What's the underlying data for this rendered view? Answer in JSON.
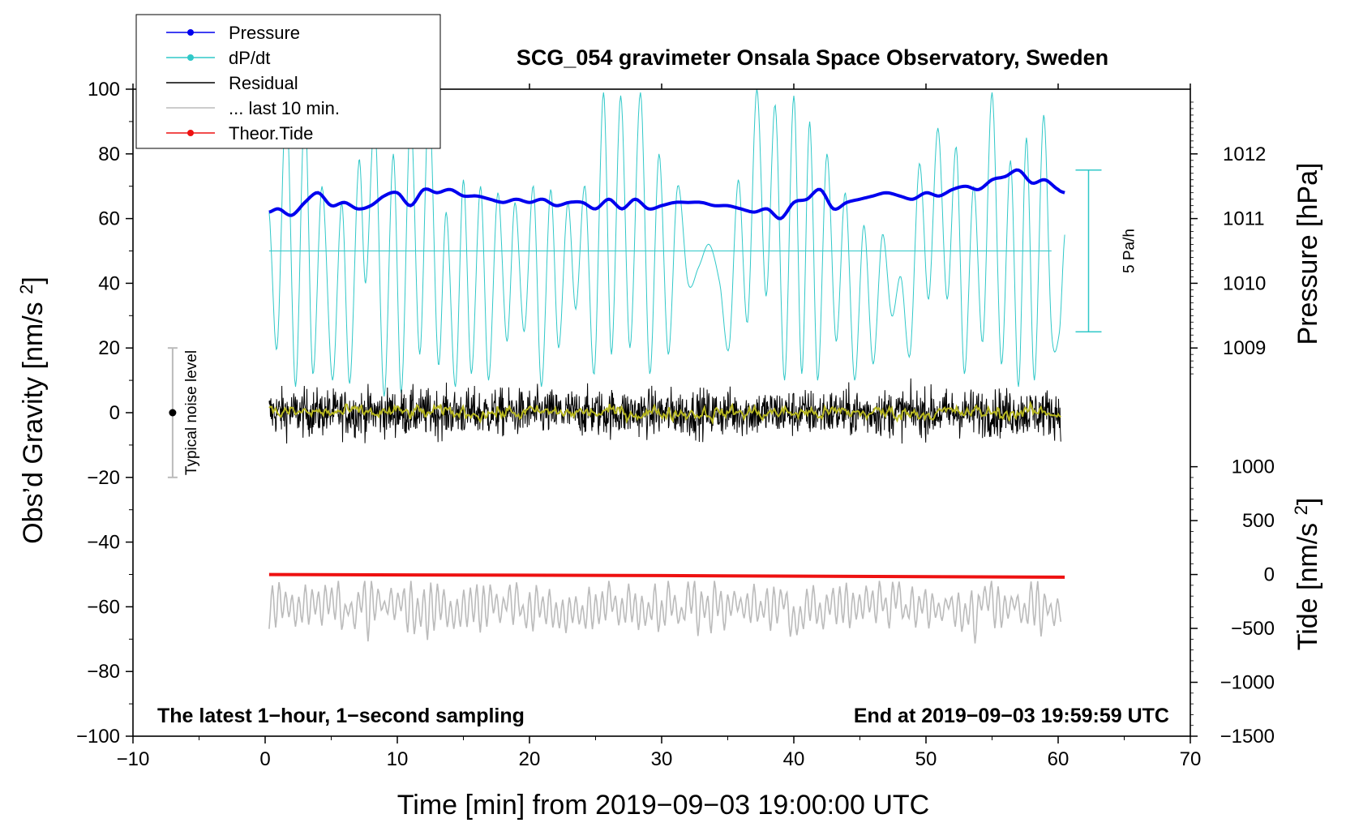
{
  "chart_data": {
    "type": "line",
    "title": "SCG_054 gravimeter Onsala Space Observatory, Sweden",
    "xlabel": "Time [min] from 2019−09−03 19:00:00 UTC",
    "ylabel_left": "Obs’d Gravity [nm/s²]",
    "ylabel_right_pressure": "Pressure [hPa]",
    "ylabel_right_tide": "Tide [nm/s²]",
    "xlim": [
      -10,
      70
    ],
    "ylim": [
      -100,
      100
    ],
    "xticks": [
      -10,
      0,
      10,
      20,
      30,
      40,
      50,
      60,
      70
    ],
    "xtick_labels": [
      "−10",
      "0",
      "10",
      "20",
      "30",
      "40",
      "50",
      "60",
      "70"
    ],
    "yticks": [
      -100,
      -80,
      -60,
      -40,
      -20,
      0,
      20,
      40,
      60,
      80,
      100
    ],
    "ytick_labels": [
      "−100",
      "−80",
      "−60",
      "−40",
      "−20",
      "0",
      "20",
      "40",
      "60",
      "80",
      "100"
    ],
    "pressure_axis": {
      "ticks": [
        1009,
        1010,
        1011,
        1012
      ],
      "tick_labels": [
        "1009",
        "1010",
        "1011",
        "1012"
      ],
      "map": {
        "value_a": 1009,
        "grav_a": 20,
        "value_b": 1012,
        "grav_b": 80
      }
    },
    "tide_axis": {
      "ticks": [
        -1500,
        -1000,
        -500,
        0,
        500,
        1000
      ],
      "tick_labels": [
        "−1500",
        "−1000",
        "−500",
        "0",
        "500",
        "1000"
      ],
      "map": {
        "value_a": -1500,
        "grav_a": -100,
        "value_b": 1000,
        "grav_b": -16.7
      }
    },
    "legend": [
      {
        "label": "Pressure",
        "color": "#0000ee",
        "marker": true
      },
      {
        "label": "dP/dt",
        "color": "#30c8c8",
        "marker": true
      },
      {
        "label": "Residual",
        "color": "#000000",
        "marker": false
      },
      {
        "label": "... last 10 min.",
        "color": "#bbbbbb",
        "marker": false
      },
      {
        "label": "Theor.Tide",
        "color": "#ee1111",
        "marker": true
      }
    ],
    "legend_position": "top-left",
    "annotations": {
      "bottom_left": "The latest 1−hour, 1−second sampling",
      "bottom_right": "End at 2019−09−03 19:59:59 UTC",
      "noise": "Typical noise level",
      "rate_scale": "5 Pa/h"
    },
    "noise_bar": {
      "x": -7,
      "center": 0,
      "low": -20,
      "high": 20
    },
    "rate_scale_bar": {
      "x": 62.3,
      "low": 25,
      "high": 75
    },
    "series": [
      {
        "name": "Pressure",
        "axis": "pressure",
        "color": "#0000ee",
        "x": [
          0.3,
          1.0,
          2.0,
          3.0,
          4.0,
          5.0,
          6.0,
          7.0,
          8.0,
          9.0,
          10.0,
          11.0,
          12.0,
          13.0,
          14.0,
          15.0,
          16.0,
          17.0,
          18.0,
          19.0,
          20.0,
          21.0,
          22.0,
          23.0,
          24.0,
          25.0,
          26.0,
          27.0,
          28.0,
          29.0,
          30.0,
          31.0,
          32.0,
          33.0,
          34.0,
          35.0,
          36.0,
          37.0,
          38.0,
          39.0,
          40.0,
          41.0,
          42.0,
          43.0,
          44.0,
          45.0,
          46.0,
          47.0,
          48.0,
          49.0,
          50.0,
          51.0,
          52.0,
          53.0,
          54.0,
          55.0,
          56.0,
          57.0,
          58.0,
          59.0,
          60.0,
          60.5
        ],
        "values": [
          1011.1,
          1011.15,
          1011.05,
          1011.25,
          1011.4,
          1011.2,
          1011.25,
          1011.15,
          1011.2,
          1011.35,
          1011.4,
          1011.2,
          1011.45,
          1011.4,
          1011.45,
          1011.35,
          1011.35,
          1011.3,
          1011.25,
          1011.3,
          1011.25,
          1011.3,
          1011.2,
          1011.25,
          1011.25,
          1011.15,
          1011.3,
          1011.15,
          1011.3,
          1011.15,
          1011.2,
          1011.25,
          1011.25,
          1011.25,
          1011.2,
          1011.2,
          1011.15,
          1011.1,
          1011.15,
          1011.0,
          1011.25,
          1011.3,
          1011.45,
          1011.15,
          1011.25,
          1011.3,
          1011.35,
          1011.4,
          1011.35,
          1011.3,
          1011.4,
          1011.35,
          1011.45,
          1011.5,
          1011.45,
          1011.6,
          1011.65,
          1011.75,
          1011.55,
          1011.6,
          1011.45,
          1011.4
        ]
      },
      {
        "name": "dP/dt",
        "axis": "gravity",
        "color": "#30c8c8",
        "baseline": 50,
        "x": [
          0.3,
          0.9,
          1.6,
          2.3,
          3.0,
          3.6,
          4.3,
          5.1,
          5.8,
          6.4,
          7.1,
          7.6,
          8.3,
          9.0,
          9.7,
          10.3,
          11.0,
          11.7,
          12.4,
          13.1,
          13.7,
          14.4,
          15.0,
          15.6,
          16.3,
          16.9,
          17.6,
          18.3,
          18.9,
          19.6,
          20.3,
          20.9,
          21.6,
          22.2,
          22.9,
          23.5,
          24.2,
          24.9,
          25.6,
          26.2,
          26.9,
          27.6,
          28.4,
          29.1,
          29.8,
          30.5,
          31.2,
          32.0,
          32.8,
          33.6,
          34.4,
          35.1,
          35.8,
          36.5,
          37.2,
          37.9,
          38.6,
          39.3,
          40.0,
          40.6,
          41.2,
          41.8,
          42.5,
          43.2,
          43.9,
          44.6,
          45.3,
          46.0,
          46.7,
          47.4,
          48.1,
          48.8,
          49.5,
          50.2,
          50.9,
          51.6,
          52.3,
          52.9,
          53.6,
          54.3,
          55.0,
          55.7,
          56.4,
          57.0,
          57.6,
          58.2,
          58.9,
          59.5,
          60.1,
          60.5
        ],
        "values": [
          62,
          20,
          97,
          8,
          95,
          12,
          70,
          10,
          65,
          9,
          78,
          40,
          90,
          5,
          80,
          6,
          92,
          18,
          97,
          15,
          62,
          8,
          72,
          12,
          70,
          10,
          68,
          22,
          65,
          25,
          70,
          8,
          69,
          20,
          65,
          32,
          70,
          12,
          99,
          18,
          98,
          20,
          99,
          12,
          80,
          18,
          70,
          40,
          45,
          52,
          40,
          20,
          72,
          28,
          100,
          36,
          95,
          10,
          98,
          12,
          90,
          10,
          80,
          22,
          68,
          10,
          58,
          15,
          55,
          30,
          42,
          18,
          77,
          35,
          88,
          35,
          82,
          12,
          70,
          22,
          99,
          15,
          78,
          8,
          85,
          10,
          92,
          25,
          25,
          55
        ]
      },
      {
        "name": "Residual",
        "axis": "gravity",
        "color": "#000000",
        "x_range": [
          0.3,
          60.2
        ],
        "center": 0,
        "envelope": [
          -14,
          12
        ]
      },
      {
        "name": "Residual (smoothed)",
        "axis": "gravity",
        "color": "#b8b820",
        "x_range": [
          0.3,
          60.2
        ],
        "center": 0,
        "envelope": [
          -3,
          3
        ]
      },
      {
        "name": "... last 10 min.",
        "axis": "gravity",
        "color": "#bbbbbb",
        "x_range": [
          0.3,
          60.2
        ],
        "center": -60,
        "envelope": [
          -73,
          -52
        ]
      },
      {
        "name": "Theor.Tide",
        "axis": "tide",
        "color": "#ee1111",
        "x": [
          0.3,
          30,
          60.5
        ],
        "values": [
          0,
          -10,
          -25
        ]
      }
    ]
  }
}
